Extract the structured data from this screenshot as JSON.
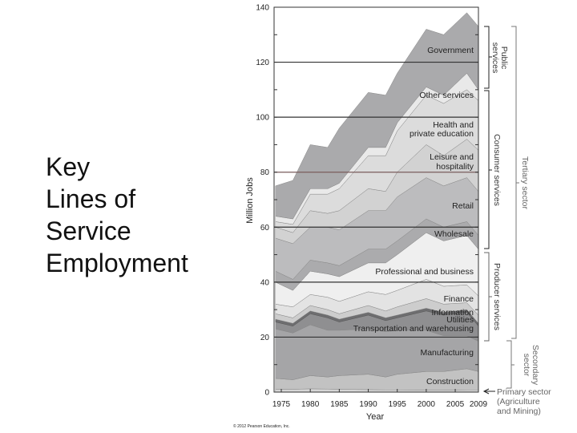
{
  "slide": {
    "title_lines": [
      "Key",
      "Lines of",
      "Service",
      "Employment"
    ],
    "copyright": "© 2012 Pearson Education, Inc."
  },
  "chart_data": {
    "type": "area",
    "stacked": true,
    "xlabel": "Year",
    "ylabel": "Million Jobs",
    "ylim": [
      0,
      140
    ],
    "xlim": [
      1974,
      2009
    ],
    "yticks": [
      "0",
      "20",
      "40",
      "60",
      "80",
      "100",
      "120",
      "140"
    ],
    "xticks": [
      "1975",
      "1980",
      "1985",
      "1990",
      "1995",
      "2000",
      "2005",
      "2009"
    ],
    "gridlines_at": [
      20,
      40,
      60,
      80,
      100,
      120
    ],
    "x": [
      1974,
      1977,
      1980,
      1983,
      1985,
      1990,
      1993,
      1995,
      2000,
      2003,
      2007,
      2009
    ],
    "series": [
      {
        "name": "Primary sector",
        "color": "#d6d6d6",
        "values": [
          1,
          1,
          1.2,
          1.1,
          1,
          0.9,
          0.8,
          0.8,
          0.7,
          0.7,
          0.8,
          0.8
        ]
      },
      {
        "name": "Construction",
        "color": "#c2c2c2",
        "values": [
          4,
          3.5,
          4.8,
          4.4,
          5,
          5.6,
          4.7,
          5.7,
          6.8,
          6.8,
          7.7,
          6.7
        ]
      },
      {
        "name": "Manufacturing",
        "color": "#a5a5a7",
        "values": [
          18,
          17,
          18.5,
          17,
          16.5,
          16.5,
          16.5,
          16,
          15,
          13,
          12,
          11
        ]
      },
      {
        "name": "Transportation and warehousing",
        "color": "#8f8f91",
        "values": [
          2.5,
          2.5,
          4,
          4.5,
          3,
          5,
          4,
          4.5,
          7,
          7.5,
          8.5,
          5.5
        ]
      },
      {
        "name": "Utilities",
        "color": "#6e6e70",
        "values": [
          1,
          1,
          1,
          1,
          1,
          1,
          1,
          1,
          1,
          1,
          1,
          1
        ]
      },
      {
        "name": "Information",
        "color": "#cdcdcd",
        "values": [
          2,
          2,
          2,
          2,
          2,
          2.5,
          2.5,
          3,
          3.5,
          3,
          2.5,
          3
        ]
      },
      {
        "name": "Finance",
        "color": "#e3e3e3",
        "values": [
          3.5,
          4,
          4,
          4.5,
          4.5,
          5,
          6,
          6,
          7,
          6.5,
          6.5,
          7
        ]
      },
      {
        "name": "Professional and business",
        "color": "#efefef",
        "values": [
          8,
          6,
          8.5,
          8.5,
          9,
          10.5,
          11.5,
          13,
          17,
          16.5,
          18,
          17
        ]
      },
      {
        "name": "Wholesale",
        "color": "#ababad",
        "values": [
          4,
          4,
          4,
          4,
          4,
          5,
          5,
          5,
          5,
          5,
          5,
          5
        ]
      },
      {
        "name": "Retail",
        "color": "#bcbcbe",
        "values": [
          12,
          13,
          12,
          13,
          13,
          14,
          14,
          16,
          15,
          15,
          16,
          16
        ]
      },
      {
        "name": "Leisure and hospitality",
        "color": "#d2d2d2",
        "values": [
          4,
          4,
          6,
          5,
          7,
          8,
          7,
          9,
          12,
          11,
          14,
          15
        ]
      },
      {
        "name": "Health and private education",
        "color": "#dcdcdc",
        "values": [
          2,
          3,
          6,
          7,
          8,
          12,
          13,
          15,
          18,
          19,
          18,
          18
        ]
      },
      {
        "name": "Other services",
        "color": "#e9e9e9",
        "values": [
          2,
          2,
          2,
          2,
          2,
          3,
          3,
          3,
          3,
          3,
          6,
          4
        ]
      },
      {
        "name": "Government",
        "color": "#aaaaac",
        "values": [
          11,
          14,
          16,
          15,
          20,
          20,
          19,
          18,
          21,
          22,
          22,
          23
        ]
      }
    ],
    "area_labels": {
      "government": "Government",
      "other": "Other services",
      "health_1": "Health and",
      "health_2": "private education",
      "leisure_1": "Leisure and",
      "leisure_2": "hospitality",
      "retail": "Retail",
      "wholesale": "Wholesale",
      "professional": "Professional and business",
      "finance": "Finance",
      "information": "Information",
      "utilities": "Utilities",
      "transport": "Transportation and warehousing",
      "manufacturing": "Manufacturing",
      "construction": "Construction"
    },
    "brackets": {
      "public_1": "Public",
      "public_2": "services",
      "consumer": "Consumer services",
      "producer": "Producer services",
      "tertiary": "Tertiary sector",
      "secondary_1": "Secondary",
      "secondary_2": "sector",
      "primary_1": "Primary sector",
      "primary_2": "(Agriculture",
      "primary_3": "and Mining)"
    }
  }
}
